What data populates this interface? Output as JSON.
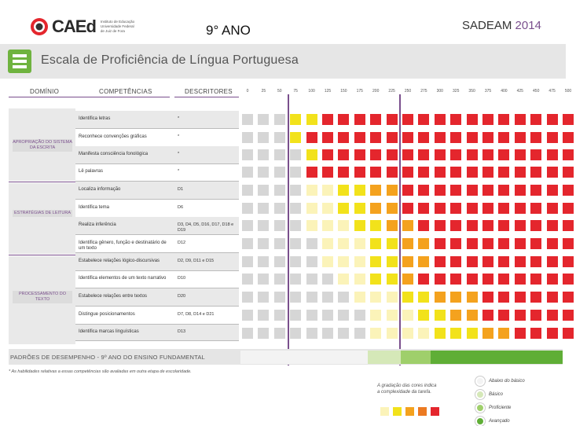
{
  "header": {
    "logo_text": "CAEd",
    "logo_subtext": [
      "Instituto de Educação",
      "Universidade Federal",
      "de Juiz de Fora"
    ],
    "grade": "9° ANO",
    "program": "SADEAM",
    "year": "2014"
  },
  "title": "Escala de Proficiência de Língua Portuguesa",
  "columns": {
    "domain": "DOMÍNIO",
    "competencies": "COMPETÊNCIAS",
    "descriptors": "DESCRITORES"
  },
  "scale": [
    "0",
    "25",
    "50",
    "75",
    "100",
    "125",
    "150",
    "175",
    "200",
    "225",
    "250",
    "275",
    "300",
    "325",
    "350",
    "375",
    "400",
    "425",
    "450",
    "475",
    "500"
  ],
  "domains": [
    {
      "label": "APROPRIAÇÃO DO SISTEMA DA ESCRITA"
    },
    {
      "label": "ESTRATÉGIAS DE LEITURA"
    },
    {
      "label": "PROCESSAMENTO DO TEXTO"
    }
  ],
  "rows": [
    {
      "competency": "Identifica letras",
      "descriptor": "*",
      "cells": "GGGYYRRRRRRRRRRRRRRRR"
    },
    {
      "competency": "Reconhece convenções gráficas",
      "descriptor": "*",
      "cells": "GGGYRRRRRRRRRRRRRRRRR"
    },
    {
      "competency": "Manifesta consciência fonológica",
      "descriptor": "*",
      "cells": "GGGGYRRRRRRRRRRRRRRRR"
    },
    {
      "competency": "Lê palavras",
      "descriptor": "*",
      "cells": "GGGGRRRRRRRRRRRRRRRRR"
    },
    {
      "competency": "Localiza informação",
      "descriptor": "D1",
      "cells": "GGGGPPYYOORRRRRRRRRRR"
    },
    {
      "competency": "Identifica tema",
      "descriptor": "D6",
      "cells": "GGGGPPYYOORRRRRRRRRRR"
    },
    {
      "competency": "Realiza inferência",
      "descriptor": "D3, D4, D5, D16, D17, D18 e D19",
      "cells": "GGGGPPPYYOORRRRRRRRRR"
    },
    {
      "competency": "Identifica gênero, função e destinatário de um texto",
      "descriptor": "D12",
      "cells": "GGGGGPPPYYOORRRRRRRRR"
    },
    {
      "competency": "Estabelece relações lógico-discursivas",
      "descriptor": "D2, D9, D11 e D15",
      "cells": "GGGGGPPPYYOORRRRRRRRR"
    },
    {
      "competency": "Identifica elementos de um texto narrativo",
      "descriptor": "D10",
      "cells": "GGGGGGPPYYORRRRRRRRRR"
    },
    {
      "competency": "Estabelece relações entre textos",
      "descriptor": "D20",
      "cells": "GGGGGGGPPPYYOOORRRRRR"
    },
    {
      "competency": "Distingue posicionamentos",
      "descriptor": "D7, D8, D14 e D21",
      "cells": "GGGGGGGGPPPYYOORRRRRR"
    },
    {
      "competency": "Identifica marcas linguísticas",
      "descriptor": "D13",
      "cells": "GGGGGGGGPPPPYYYOORRRR"
    }
  ],
  "performance_band_label": "PADRÕES DE DESEMPENHO - 9º ANO DO ENSINO FUNDAMENTAL",
  "footnote": "* As habilidades relativas a essas competências são avaliadas em outra etapa de escolaridade.",
  "gradation_legend": [
    "A gradação das cores indica",
    "a complexidade da tarefa."
  ],
  "levels": [
    {
      "name": "Abaixo do básico",
      "color": "#f3f3f3"
    },
    {
      "name": "Básico",
      "color": "#d5e8b8"
    },
    {
      "name": "Proficiente",
      "color": "#9fcf6b"
    },
    {
      "name": "Avançado",
      "color": "#5fae36"
    }
  ],
  "colors": {
    "G": "#d6d6d6",
    "P": "#fbf3b9",
    "Y": "#f2e21b",
    "O": "#f4a21e",
    "R": "#e4262d",
    "accent": "#7a4f8d",
    "brand_green": "#6fb33f"
  },
  "gradation_colors": [
    "#fbf3b9",
    "#f2e21b",
    "#f4a21e",
    "#ec7a22",
    "#e4262d"
  ]
}
